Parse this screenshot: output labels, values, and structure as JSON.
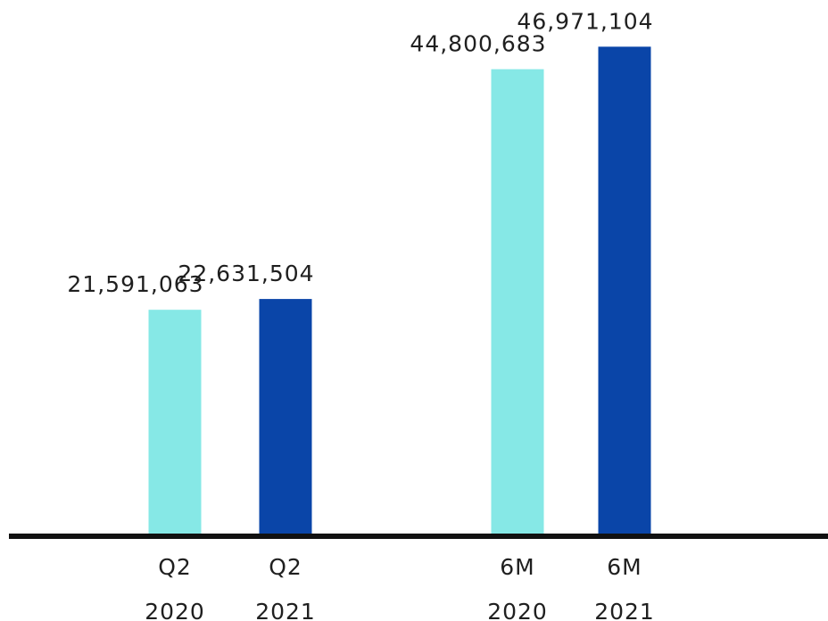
{
  "chart_data": {
    "type": "bar",
    "categories": [
      [
        "Q2",
        "2020"
      ],
      [
        "Q2",
        "2021"
      ],
      [
        "6M",
        "2020"
      ],
      [
        "6M",
        "2021"
      ]
    ],
    "values": [
      21591063,
      22631504,
      44800683,
      46971104
    ],
    "value_labels": [
      "21,591,063",
      "22,631,504",
      "44,800,683",
      "46,971,104"
    ],
    "bar_colors": [
      "#86e8e6",
      "#0a45a8",
      "#86e8e6",
      "#0a45a8"
    ],
    "ylim": [
      0,
      47000000
    ],
    "grid": false,
    "legend": "none",
    "axis_color": "#111111"
  }
}
